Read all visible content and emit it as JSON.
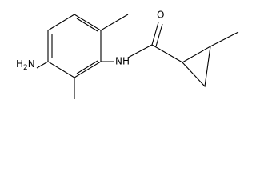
{
  "labels": {
    "amine": {
      "h": "H",
      "sub": "2",
      "n": "N"
    },
    "amide_nh": "NH",
    "carbonyl_o": "O"
  }
}
